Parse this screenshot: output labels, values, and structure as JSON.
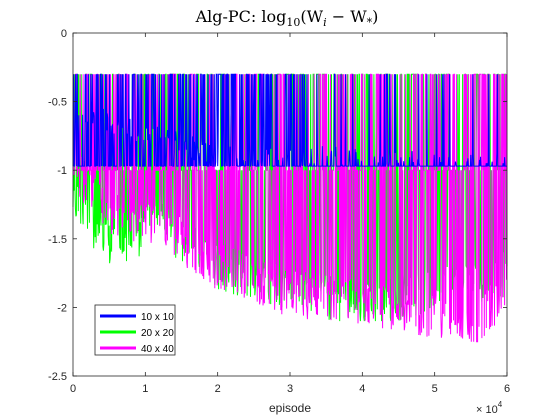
{
  "chart_data": {
    "type": "line",
    "title": "Alg-PC: log",
    "title_sub": "10",
    "title_rest": "(W",
    "title_i": "i",
    "title_minus": " − W",
    "title_star": "*",
    "title_close": ")",
    "xlabel": "episode",
    "ylabel": "",
    "x_multiplier_base": "× 10",
    "x_multiplier_exp": "4",
    "xlim": [
      0,
      6
    ],
    "ylim": [
      -2.5,
      0
    ],
    "xticks": [
      "0",
      "1",
      "2",
      "3",
      "4",
      "5",
      "6"
    ],
    "yticks": [
      "0",
      "-0.5",
      "-1",
      "-1.5",
      "-2",
      "-2.5"
    ],
    "grid": false,
    "legend_position": "bottom-left",
    "series": [
      {
        "name": "10 x 10",
        "color": "#0000FF",
        "baseline": -0.97,
        "noise_low": -0.97,
        "noise_high": -0.3,
        "profile": [
          [
            0,
            -0.6
          ],
          [
            1.2,
            -0.75
          ],
          [
            2,
            -0.9
          ],
          [
            3,
            -0.9
          ],
          [
            4.5,
            -0.95
          ],
          [
            6,
            -0.97
          ]
        ]
      },
      {
        "name": "20 x 20",
        "color": "#00FF00",
        "baseline": -1.0,
        "noise_low": -2.1,
        "noise_high": -0.3,
        "profile": [
          [
            0,
            -1.2
          ],
          [
            0.5,
            -1.55
          ],
          [
            1.2,
            -1.4
          ],
          [
            2,
            -1.7
          ],
          [
            3,
            -1.85
          ],
          [
            4,
            -2.0
          ],
          [
            5,
            -1.85
          ],
          [
            6,
            -1.75
          ]
        ]
      },
      {
        "name": "40 x 40",
        "color": "#FF00FF",
        "baseline": -1.0,
        "noise_low": -2.25,
        "noise_high": -0.3,
        "profile": [
          [
            0,
            -1.0
          ],
          [
            0.5,
            -1.3
          ],
          [
            1.2,
            -1.4
          ],
          [
            2,
            -1.7
          ],
          [
            3,
            -1.9
          ],
          [
            4,
            -1.95
          ],
          [
            5,
            -2.05
          ],
          [
            5.5,
            -2.2
          ],
          [
            6,
            -1.9
          ]
        ]
      }
    ]
  }
}
